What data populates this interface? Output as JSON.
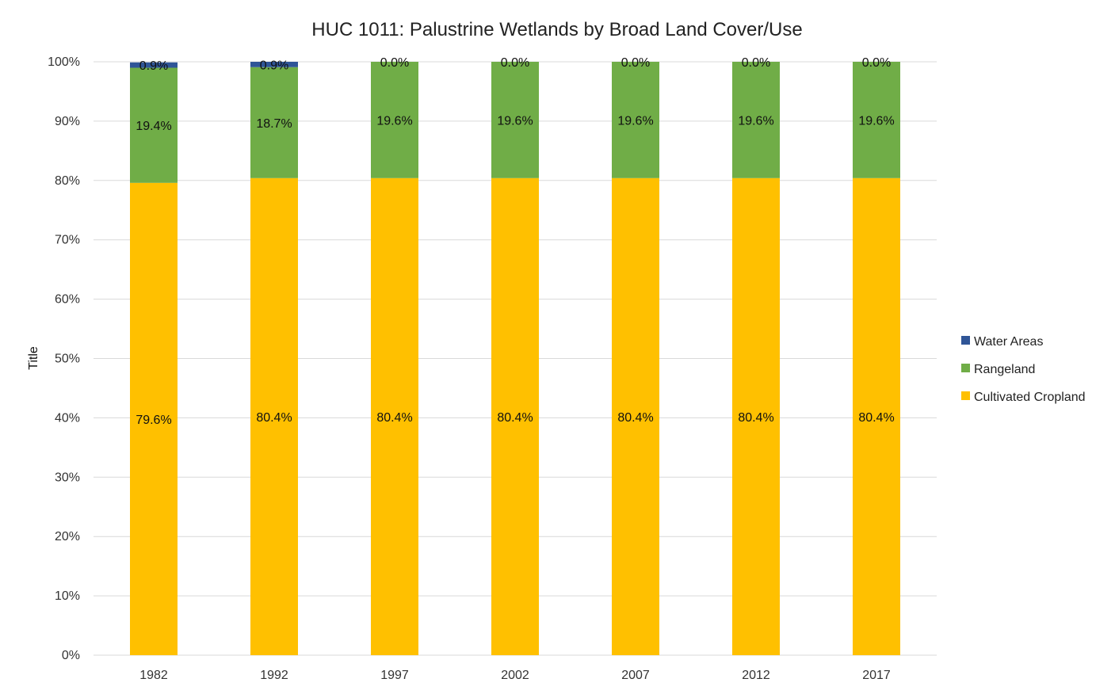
{
  "chart_data": {
    "type": "bar",
    "stacked": "percent",
    "title": "HUC 1011: Palustrine Wetlands by Broad Land Cover/Use",
    "xlabel": "",
    "ylabel": "Title",
    "ylim": [
      0,
      100
    ],
    "yticks": [
      "0%",
      "10%",
      "20%",
      "30%",
      "40%",
      "50%",
      "60%",
      "70%",
      "80%",
      "90%",
      "100%"
    ],
    "grid": true,
    "legend_position": "right",
    "categories": [
      "1982",
      "1992",
      "1997",
      "2002",
      "2007",
      "2012",
      "2017"
    ],
    "series": [
      {
        "name": "Cultivated Cropland",
        "color": "#FFC000",
        "values": [
          79.6,
          80.4,
          80.4,
          80.4,
          80.4,
          80.4,
          80.4
        ],
        "labels": [
          "79.6%",
          "80.4%",
          "80.4%",
          "80.4%",
          "80.4%",
          "80.4%",
          "80.4%"
        ]
      },
      {
        "name": "Rangeland",
        "color": "#70AD47",
        "values": [
          19.4,
          18.7,
          19.6,
          19.6,
          19.6,
          19.6,
          19.6
        ],
        "labels": [
          "19.4%",
          "18.7%",
          "19.6%",
          "19.6%",
          "19.6%",
          "19.6%",
          "19.6%"
        ]
      },
      {
        "name": "Water Areas",
        "color": "#2F5597",
        "values": [
          0.9,
          0.9,
          0.0,
          0.0,
          0.0,
          0.0,
          0.0
        ],
        "labels": [
          "0.9%",
          "0.9%",
          "0.0%",
          "0.0%",
          "0.0%",
          "0.0%",
          "0.0%"
        ]
      }
    ],
    "legend_order": [
      "Water Areas",
      "Rangeland",
      "Cultivated Cropland"
    ]
  }
}
